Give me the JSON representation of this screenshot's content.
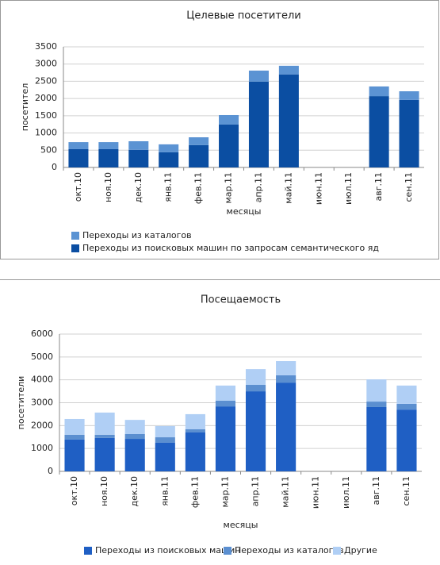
{
  "chart_data": [
    {
      "type": "bar",
      "stacked": true,
      "title": "Целевые посетители",
      "x_label": "месяцы",
      "y_label": "посетител",
      "categories": [
        "окт.10",
        "ноя.10",
        "дек.10",
        "янв.11",
        "фев.11",
        "мар.11",
        "апр.11",
        "май.11",
        "июн.11",
        "июл.11",
        "авг.11",
        "сен.11"
      ],
      "series": [
        {
          "name": "Переходы из поисковых машин по запросам семантического яд",
          "color": "#0b4ea2",
          "values": [
            530,
            530,
            510,
            440,
            650,
            1245,
            2490,
            2700,
            null,
            null,
            2070,
            1960
          ]
        },
        {
          "name": "Переходы из каталогов",
          "color": "#5b93d3",
          "values": [
            205,
            205,
            250,
            230,
            225,
            275,
            320,
            250,
            null,
            null,
            280,
            250
          ]
        }
      ],
      "ylim": [
        0,
        3500
      ],
      "yticks": [
        0,
        500,
        1000,
        1500,
        2000,
        2500,
        3000,
        3500
      ],
      "grid": true,
      "legend": "bottom",
      "legend_reversed": true
    },
    {
      "type": "bar",
      "stacked": true,
      "title": "Посещаемость",
      "x_label": "месяцы",
      "y_label": "посетители",
      "categories": [
        "окт.10",
        "ноя.10",
        "дек.10",
        "янв.11",
        "фев.11",
        "мар.11",
        "апр.11",
        "май.11",
        "июн.11",
        "июл.11",
        "авг.11",
        "сен.11"
      ],
      "series": [
        {
          "name": "Переходы из поисковых машин",
          "color": "#1f5fc4",
          "values": [
            1390,
            1460,
            1420,
            1250,
            1700,
            2840,
            3500,
            3880,
            null,
            null,
            2810,
            2700
          ]
        },
        {
          "name": "Переходы из каталогов",
          "color": "#5b8fd0",
          "values": [
            210,
            140,
            210,
            240,
            140,
            250,
            280,
            320,
            null,
            null,
            240,
            250
          ]
        },
        {
          "name": "Другие",
          "color": "#b0cff5",
          "values": [
            690,
            970,
            620,
            490,
            660,
            660,
            690,
            620,
            null,
            null,
            970,
            800
          ]
        }
      ],
      "ylim": [
        0,
        6000
      ],
      "yticks": [
        0,
        1000,
        2000,
        3000,
        4000,
        5000,
        6000
      ],
      "grid": true,
      "legend": "bottom",
      "legend_reversed": false
    }
  ]
}
